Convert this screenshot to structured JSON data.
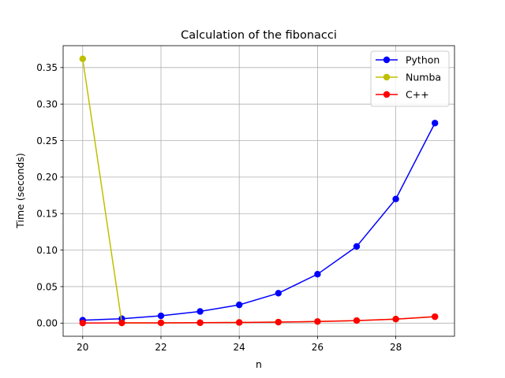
{
  "chart_data": {
    "type": "line",
    "title": "Calculation of the fibonacci",
    "xlabel": "n",
    "ylabel": "Time (seconds)",
    "xlim": [
      19.5,
      29.5
    ],
    "ylim": [
      -0.018,
      0.38
    ],
    "xticks": [
      20,
      22,
      24,
      26,
      28
    ],
    "xtick_labels": [
      "20",
      "22",
      "24",
      "26",
      "28"
    ],
    "yticks": [
      0.0,
      0.05,
      0.1,
      0.15,
      0.2,
      0.25,
      0.3,
      0.35
    ],
    "ytick_labels": [
      "0.00",
      "0.05",
      "0.10",
      "0.15",
      "0.20",
      "0.25",
      "0.30",
      "0.35"
    ],
    "grid": true,
    "legend_position": "top-right",
    "x": [
      20,
      21,
      22,
      23,
      24,
      25,
      26,
      27,
      28,
      29
    ],
    "series": [
      {
        "name": "Python",
        "color": "#0000ff",
        "values": [
          0.004,
          0.006,
          0.01,
          0.016,
          0.025,
          0.041,
          0.067,
          0.105,
          0.17,
          0.274
        ]
      },
      {
        "name": "Numba",
        "color": "#bfbf00",
        "values": [
          0.362,
          0.0003,
          0.0004,
          0.0006,
          0.0009,
          0.0014,
          0.0022,
          0.0035,
          0.0055,
          0.0088
        ]
      },
      {
        "name": "C++",
        "color": "#ff0000",
        "values": [
          0.0002,
          0.0003,
          0.0004,
          0.0006,
          0.0009,
          0.0014,
          0.0022,
          0.0035,
          0.0055,
          0.0088
        ]
      }
    ]
  }
}
